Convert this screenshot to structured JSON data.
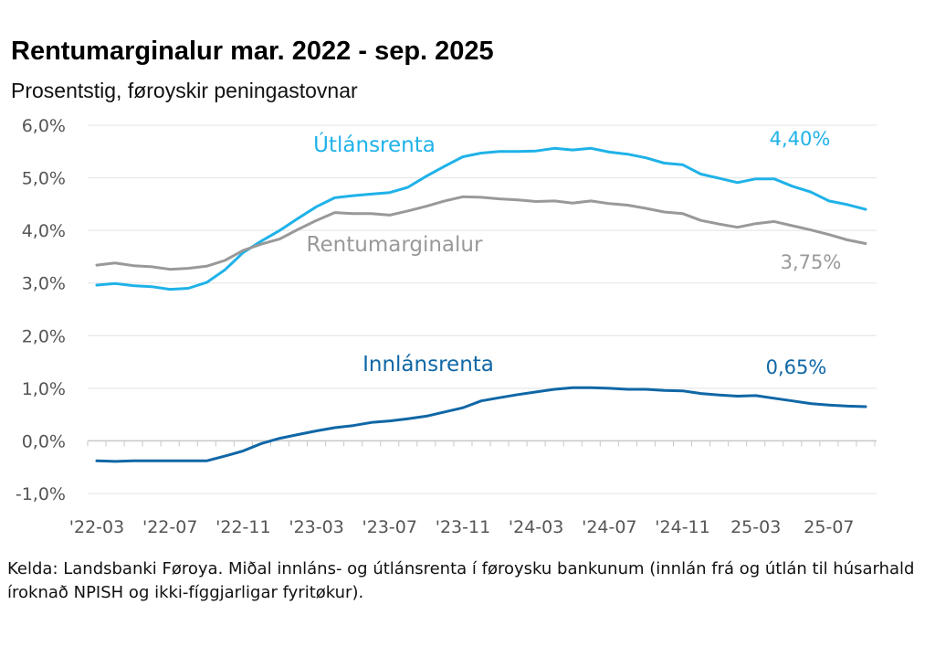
{
  "header": {
    "title": "Rentumarginalur mar. 2022 - sep. 2025",
    "subtitle": "Prosentstig, føroyskir peningastovnar"
  },
  "footnote": "Kelda: Landsbanki Føroya. Miðal innláns- og útlánsrenta í føroysku bankunum (innlán frá og útlán til húsarhald íroknað NPISH og ikki-fíggjarligar fyritøkur).",
  "chart_data": {
    "type": "line",
    "title": "Rentumarginalur mar. 2022 - sep. 2025",
    "subtitle": "Prosentstig, føroyskir peningastovnar",
    "xlabel": "",
    "ylabel": "",
    "ylim": [
      -1.0,
      6.0
    ],
    "y_ticks": [
      -1.0,
      0.0,
      1.0,
      2.0,
      3.0,
      4.0,
      5.0,
      6.0
    ],
    "y_tick_labels": [
      "-1,0%",
      "0,0%",
      "1,0%",
      "2,0%",
      "3,0%",
      "4,0%",
      "5,0%",
      "6,0%"
    ],
    "x_tick_labels": [
      "'22-03",
      "'22-07",
      "'22-11",
      "'23-03",
      "'23-07",
      "'23-11",
      "'24-03",
      "'24-07",
      "'24-11",
      "25-03",
      "25-07"
    ],
    "x_tick_every": 4,
    "n_points": 43,
    "grid": true,
    "series": [
      {
        "name": "Útlánsrenta",
        "color": "#1fb2e8",
        "end_label": "4,40%",
        "values": [
          2.96,
          2.99,
          2.95,
          2.93,
          2.88,
          2.9,
          3.01,
          3.25,
          3.58,
          3.8,
          4.0,
          4.23,
          4.45,
          4.62,
          4.66,
          4.69,
          4.72,
          4.82,
          5.03,
          5.22,
          5.4,
          5.47,
          5.5,
          5.5,
          5.51,
          5.56,
          5.53,
          5.56,
          5.49,
          5.45,
          5.38,
          5.28,
          5.25,
          5.07,
          4.99,
          4.91,
          4.98,
          4.98,
          4.84,
          4.73,
          4.56,
          4.49,
          4.4
        ]
      },
      {
        "name": "Rentumarginalur",
        "color": "#999999",
        "end_label": "3,75%",
        "values": [
          3.34,
          3.38,
          3.33,
          3.31,
          3.26,
          3.28,
          3.32,
          3.43,
          3.62,
          3.74,
          3.84,
          4.02,
          4.19,
          4.34,
          4.32,
          4.32,
          4.29,
          4.37,
          4.46,
          4.56,
          4.64,
          4.63,
          4.6,
          4.58,
          4.55,
          4.56,
          4.52,
          4.56,
          4.51,
          4.48,
          4.42,
          4.35,
          4.32,
          4.19,
          4.12,
          4.06,
          4.13,
          4.17,
          4.09,
          4.01,
          3.92,
          3.82,
          3.75
        ]
      },
      {
        "name": "Innlánsrenta",
        "color": "#0f67a6",
        "end_label": "0,65%",
        "values": [
          -0.38,
          -0.39,
          -0.38,
          -0.38,
          -0.38,
          -0.38,
          -0.38,
          -0.29,
          -0.19,
          -0.05,
          0.05,
          0.12,
          0.19,
          0.25,
          0.29,
          0.35,
          0.38,
          0.42,
          0.47,
          0.55,
          0.63,
          0.76,
          0.82,
          0.88,
          0.93,
          0.98,
          1.01,
          1.01,
          1.0,
          0.98,
          0.98,
          0.96,
          0.95,
          0.9,
          0.87,
          0.85,
          0.86,
          0.81,
          0.76,
          0.71,
          0.68,
          0.66,
          0.65
        ]
      }
    ]
  }
}
